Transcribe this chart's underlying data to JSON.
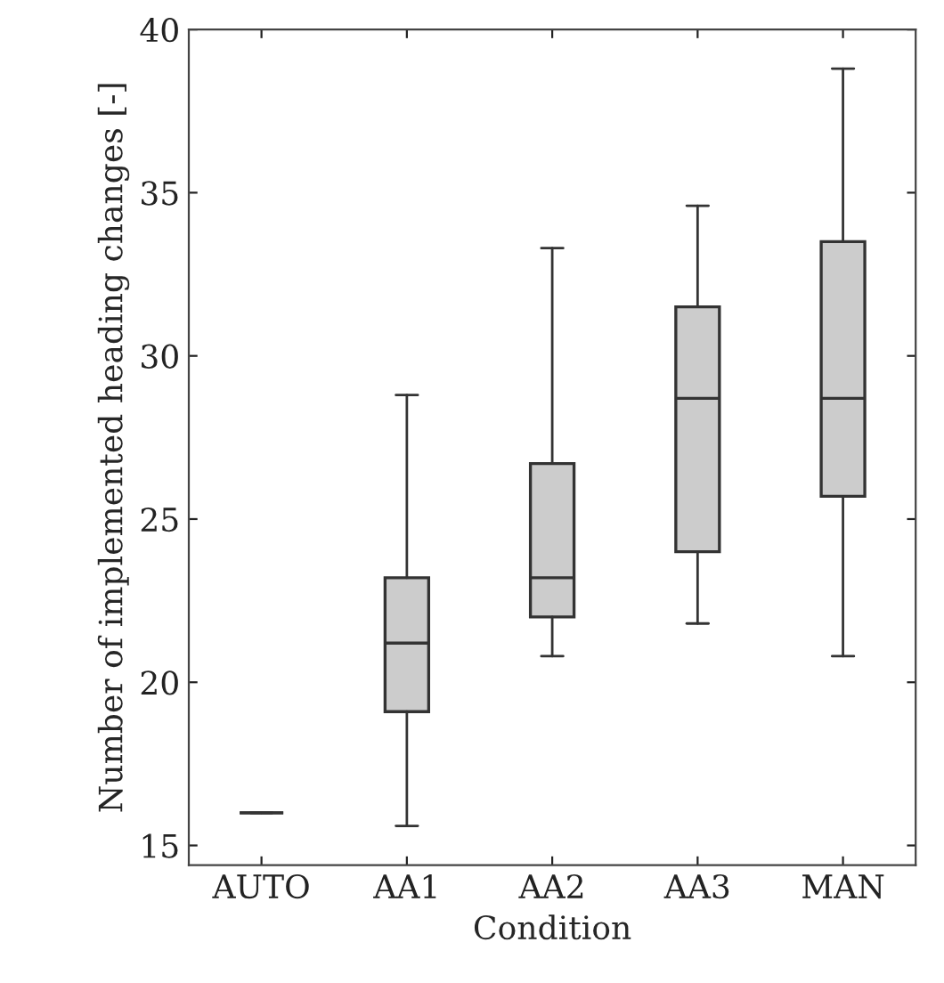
{
  "chart_data": {
    "type": "box",
    "xlabel": "Condition",
    "ylabel": "Number of implemented heading changes [-]",
    "categories": [
      "AUTO",
      "AA1",
      "AA2",
      "AA3",
      "MAN"
    ],
    "colors": [
      "#333333",
      "#cccccc",
      "#cccccc",
      "#cccccc",
      "#cccccc"
    ],
    "boxes": [
      {
        "low": 16,
        "q1": 16,
        "median": 16,
        "q3": 16,
        "high": 16
      },
      {
        "low": 15.6,
        "q1": 19.1,
        "median": 21.2,
        "q3": 23.2,
        "high": 28.8
      },
      {
        "low": 20.8,
        "q1": 22.0,
        "median": 23.2,
        "q3": 26.7,
        "high": 33.3
      },
      {
        "low": 21.8,
        "q1": 24.0,
        "median": 28.7,
        "q3": 31.5,
        "high": 34.6
      },
      {
        "low": 20.8,
        "q1": 25.7,
        "median": 28.7,
        "q3": 33.5,
        "high": 38.8
      }
    ],
    "ylim": [
      14.4,
      40
    ],
    "yticks": [
      15,
      20,
      25,
      30,
      35,
      40
    ],
    "grid": false,
    "legend": false
  }
}
